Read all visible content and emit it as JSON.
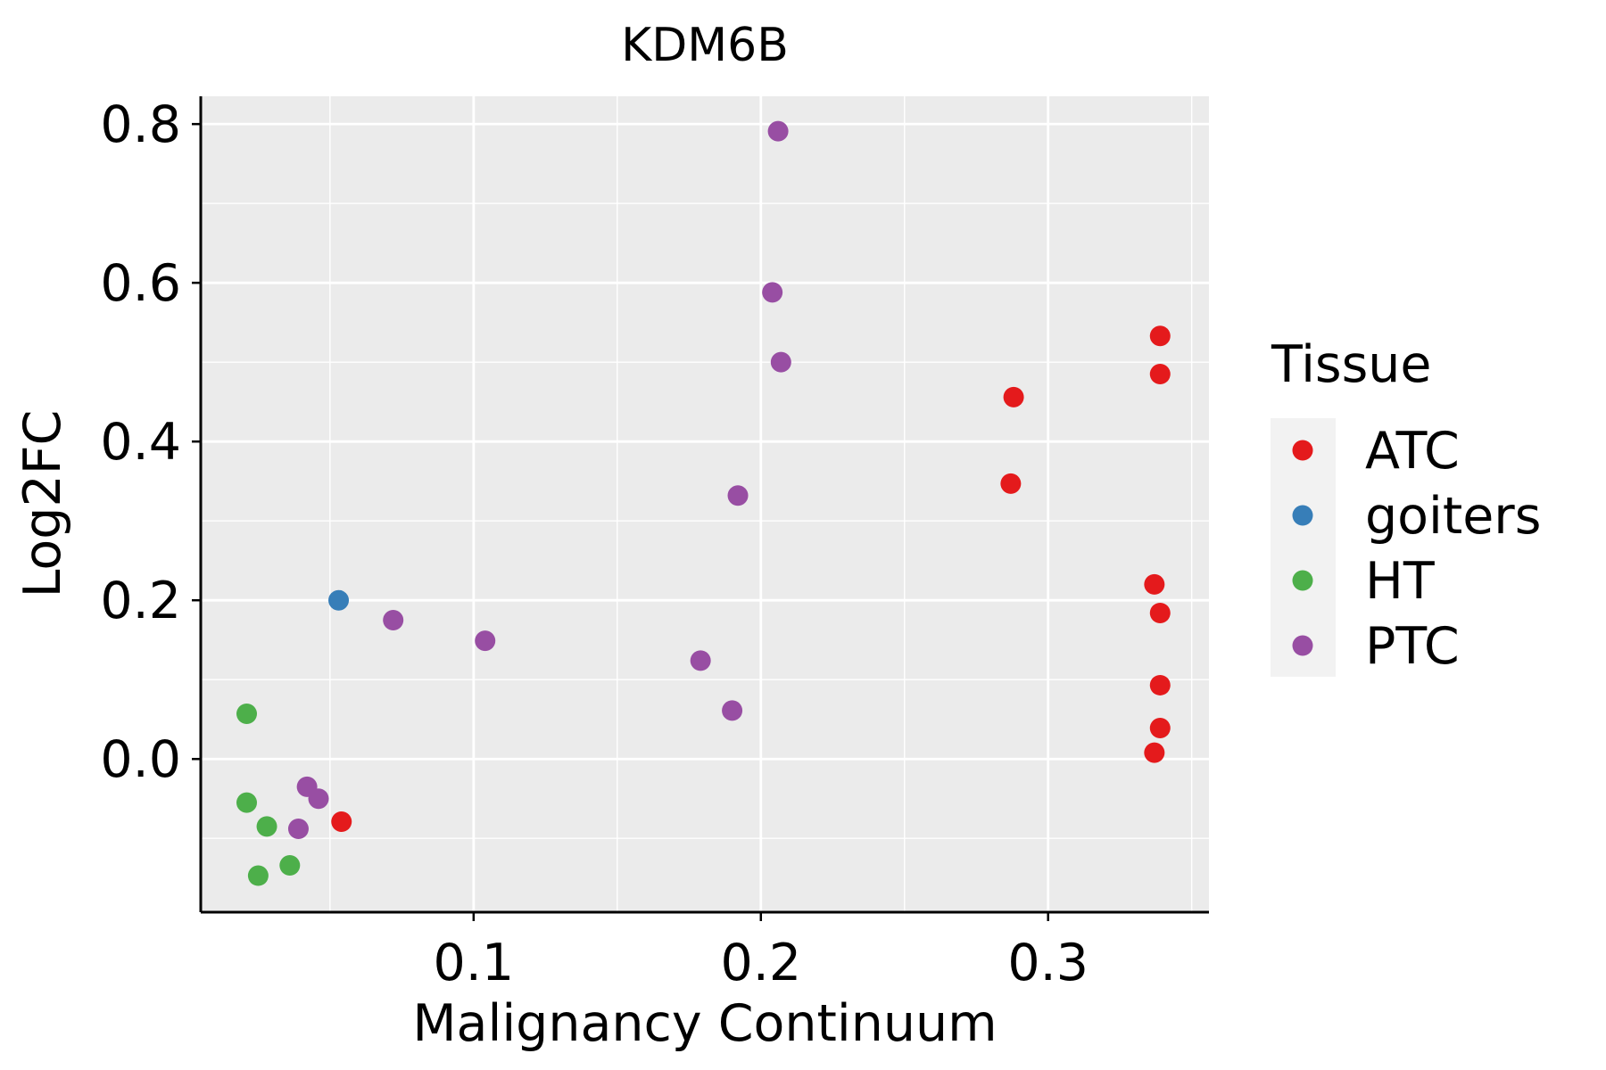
{
  "chart_data": {
    "type": "scatter",
    "title": "KDM6B",
    "xlabel": "Malignancy Continuum",
    "ylabel": "Log2FC",
    "xlim": [
      0.005,
      0.356
    ],
    "ylim": [
      -0.193,
      0.835
    ],
    "x_ticks": [
      0.1,
      0.2,
      0.3
    ],
    "x_tick_labels": [
      "0.1",
      "0.2",
      "0.3"
    ],
    "x_minor_ticks": [
      0.05,
      0.15,
      0.25,
      0.35
    ],
    "y_ticks": [
      0.0,
      0.2,
      0.4,
      0.6,
      0.8
    ],
    "y_tick_labels": [
      "0.0",
      "0.2",
      "0.4",
      "0.6",
      "0.8"
    ],
    "y_minor_ticks": [
      -0.1,
      0.1,
      0.3,
      0.5,
      0.7
    ],
    "grid": true,
    "legend": {
      "title": "Tissue",
      "position": "right",
      "entries": [
        {
          "name": "ATC",
          "color": "#E41A1C"
        },
        {
          "name": "goiters",
          "color": "#377EB8"
        },
        {
          "name": "HT",
          "color": "#4DAF4A"
        },
        {
          "name": "PTC",
          "color": "#984EA3"
        }
      ]
    },
    "series": [
      {
        "name": "ATC",
        "color": "#E41A1C",
        "points": [
          {
            "x": 0.339,
            "y": 0.533
          },
          {
            "x": 0.339,
            "y": 0.485
          },
          {
            "x": 0.288,
            "y": 0.456
          },
          {
            "x": 0.287,
            "y": 0.347
          },
          {
            "x": 0.337,
            "y": 0.22
          },
          {
            "x": 0.339,
            "y": 0.184
          },
          {
            "x": 0.339,
            "y": 0.093
          },
          {
            "x": 0.339,
            "y": 0.039
          },
          {
            "x": 0.337,
            "y": 0.008
          },
          {
            "x": 0.054,
            "y": -0.079
          }
        ]
      },
      {
        "name": "goiters",
        "color": "#377EB8",
        "points": [
          {
            "x": 0.053,
            "y": 0.2
          }
        ]
      },
      {
        "name": "HT",
        "color": "#4DAF4A",
        "points": [
          {
            "x": 0.021,
            "y": 0.057
          },
          {
            "x": 0.021,
            "y": -0.055
          },
          {
            "x": 0.028,
            "y": -0.085
          },
          {
            "x": 0.025,
            "y": -0.147
          },
          {
            "x": 0.036,
            "y": -0.134
          }
        ]
      },
      {
        "name": "PTC",
        "color": "#984EA3",
        "points": [
          {
            "x": 0.206,
            "y": 0.791
          },
          {
            "x": 0.204,
            "y": 0.588
          },
          {
            "x": 0.207,
            "y": 0.5
          },
          {
            "x": 0.192,
            "y": 0.332
          },
          {
            "x": 0.072,
            "y": 0.175
          },
          {
            "x": 0.104,
            "y": 0.149
          },
          {
            "x": 0.179,
            "y": 0.124
          },
          {
            "x": 0.19,
            "y": 0.061
          },
          {
            "x": 0.042,
            "y": -0.035
          },
          {
            "x": 0.046,
            "y": -0.05
          },
          {
            "x": 0.039,
            "y": -0.088
          }
        ]
      }
    ]
  },
  "colors": {
    "panel_background": "#EBEBEB",
    "grid": "#FFFFFF",
    "axis": "#000000",
    "legend_key_background": "#F2F2F2"
  }
}
